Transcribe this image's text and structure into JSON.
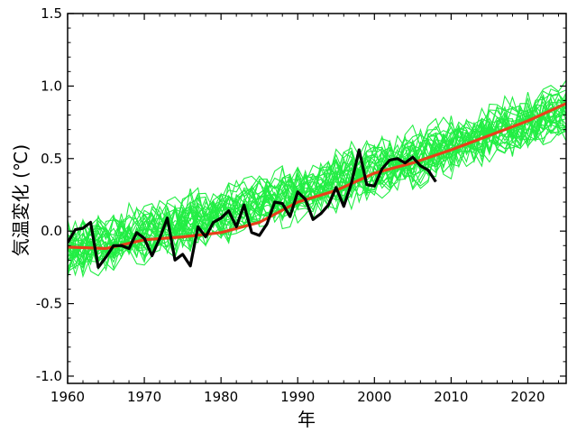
{
  "chart_data": {
    "type": "line",
    "title": "",
    "xlabel": "年",
    "ylabel": "気温変化 (℃)",
    "xlim": [
      1960,
      2025
    ],
    "ylim": [
      -1.05,
      1.5
    ],
    "x_ticks": [
      1960,
      1970,
      1980,
      1990,
      2000,
      2010,
      2020
    ],
    "x_tick_labels": [
      "1960",
      "1970",
      "1980",
      "1990",
      "2000",
      "2010",
      "2020"
    ],
    "y_ticks": [
      -1.0,
      -0.5,
      0.0,
      0.5,
      1.0,
      1.5
    ],
    "y_tick_labels": [
      "-1.0",
      "-0.5",
      "0.0",
      "0.5",
      "1.0",
      "1.5"
    ],
    "grid": false,
    "legend": "none",
    "colors": {
      "ensemble": "#22ee44",
      "mean": "#e8401a",
      "observed": "#000000"
    },
    "ensemble": {
      "description_count": 30,
      "years": [
        1960,
        2025
      ],
      "trend_start": -0.12,
      "trend_end": 0.85,
      "spread": 0.18
    },
    "series": [
      {
        "role": "ensemble-mean",
        "x": [
          1960,
          1965,
          1970,
          1975,
          1980,
          1985,
          1990,
          1995,
          2000,
          2005,
          2010,
          2015,
          2020,
          2025
        ],
        "y": [
          -0.11,
          -0.12,
          -0.06,
          -0.04,
          -0.01,
          0.06,
          0.2,
          0.28,
          0.4,
          0.47,
          0.56,
          0.66,
          0.76,
          0.88
        ]
      },
      {
        "role": "observed",
        "x": [
          1960,
          1961,
          1962,
          1963,
          1964,
          1965,
          1966,
          1967,
          1968,
          1969,
          1970,
          1971,
          1972,
          1973,
          1974,
          1975,
          1976,
          1977,
          1978,
          1979,
          1980,
          1981,
          1982,
          1983,
          1984,
          1985,
          1986,
          1987,
          1988,
          1989,
          1990,
          1991,
          1992,
          1993,
          1994,
          1995,
          1996,
          1997,
          1998,
          1999,
          2000,
          2001,
          2002,
          2003,
          2004,
          2005,
          2006,
          2007,
          2008
        ],
        "y": [
          -0.08,
          0.01,
          0.02,
          0.06,
          -0.25,
          -0.18,
          -0.1,
          -0.1,
          -0.12,
          -0.01,
          -0.05,
          -0.17,
          -0.05,
          0.09,
          -0.2,
          -0.16,
          -0.24,
          0.03,
          -0.04,
          0.06,
          0.09,
          0.14,
          0.03,
          0.18,
          -0.01,
          -0.03,
          0.05,
          0.2,
          0.19,
          0.1,
          0.27,
          0.22,
          0.08,
          0.12,
          0.18,
          0.3,
          0.17,
          0.33,
          0.56,
          0.32,
          0.31,
          0.43,
          0.49,
          0.5,
          0.47,
          0.51,
          0.45,
          0.42,
          0.34
        ]
      }
    ]
  }
}
